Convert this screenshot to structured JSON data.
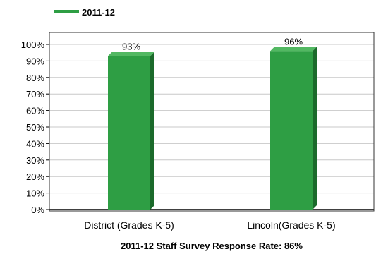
{
  "chart_data": {
    "type": "bar",
    "categories": [
      "District (Grades K-5)",
      "Lincoln(Grades K-5)"
    ],
    "series": [
      {
        "name": "2011-12",
        "values": [
          93,
          96
        ]
      }
    ],
    "data_labels": [
      "93%",
      "96%"
    ],
    "y_ticks": [
      "0%",
      "10%",
      "20%",
      "30%",
      "40%",
      "50%",
      "60%",
      "70%",
      "80%",
      "90%",
      "100%"
    ],
    "ylim": [
      0,
      100
    ],
    "grid": true,
    "legend_position": "top-left",
    "caption": "2011-12 Staff Survey Response Rate: 86%",
    "colors": {
      "bar_front": "#2e9e44",
      "bar_side": "#1b6a2b",
      "bar_top": "#52b862",
      "legend_swatch": "#2e9e44",
      "gridline": "#c8c8c8",
      "axis": "#000000"
    }
  }
}
